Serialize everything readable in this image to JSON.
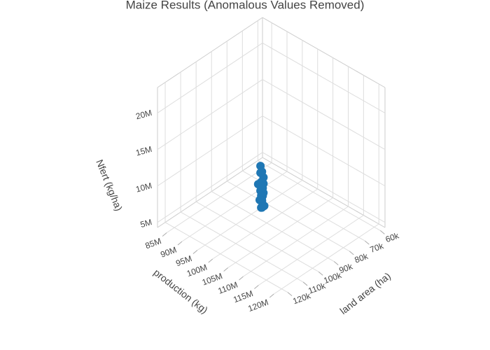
{
  "chart_data": {
    "type": "scatter3d",
    "title": "Maize Results (Anomalous Values Removed)",
    "xlabel": "land area (ha)",
    "ylabel": "production (kg)",
    "zlabel": "Nfert (kg/ha)",
    "xlim": [
      57000,
      125000
    ],
    "xticks": [
      {
        "value": 60000,
        "label": "60k"
      },
      {
        "value": 70000,
        "label": "70k"
      },
      {
        "value": 80000,
        "label": "80k"
      },
      {
        "value": 90000,
        "label": "90k"
      },
      {
        "value": 100000,
        "label": "100k"
      },
      {
        "value": 110000,
        "label": "110k"
      },
      {
        "value": 120000,
        "label": "120k"
      }
    ],
    "ylim": [
      82000000,
      122000000
    ],
    "yticks": [
      {
        "value": 85000000,
        "label": "85M"
      },
      {
        "value": 90000000,
        "label": "90M"
      },
      {
        "value": 95000000,
        "label": "95M"
      },
      {
        "value": 100000000,
        "label": "100M"
      },
      {
        "value": 105000000,
        "label": "105M"
      },
      {
        "value": 110000000,
        "label": "110M"
      },
      {
        "value": 115000000,
        "label": "115M"
      },
      {
        "value": 120000000,
        "label": "120M"
      }
    ],
    "zlim": [
      4300000,
      23500000
    ],
    "zticks": [
      {
        "value": 5000000,
        "label": "5M"
      },
      {
        "value": 10000000,
        "label": "10M"
      },
      {
        "value": 15000000,
        "label": "15M"
      },
      {
        "value": 20000000,
        "label": "20M"
      }
    ],
    "grid": true,
    "series": [
      {
        "color": "#1f77b4",
        "x": [
          96000,
          97000,
          98000,
          95000,
          99000,
          97500,
          96500,
          98500,
          100000,
          97000,
          95500,
          99500,
          98000,
          96000,
          97500,
          99000,
          100500,
          98000,
          97000,
          96500,
          99000,
          98500,
          97000,
          95000
        ],
        "y": [
          101000000,
          102000000,
          103000000,
          100500000,
          103500000,
          102500000,
          101500000,
          103000000,
          104000000,
          102000000,
          100000000,
          103500000,
          102500000,
          101000000,
          102000000,
          103000000,
          104500000,
          102500000,
          101500000,
          101000000,
          103000000,
          102500000,
          102000000,
          100500000
        ],
        "z": [
          13200000,
          12800000,
          12400000,
          12000000,
          11800000,
          11500000,
          11200000,
          11000000,
          10800000,
          10600000,
          10400000,
          10200000,
          10000000,
          9800000,
          9600000,
          9400000,
          9200000,
          9000000,
          8800000,
          8600000,
          8400000,
          8200000,
          8000000,
          10300000
        ]
      }
    ]
  }
}
